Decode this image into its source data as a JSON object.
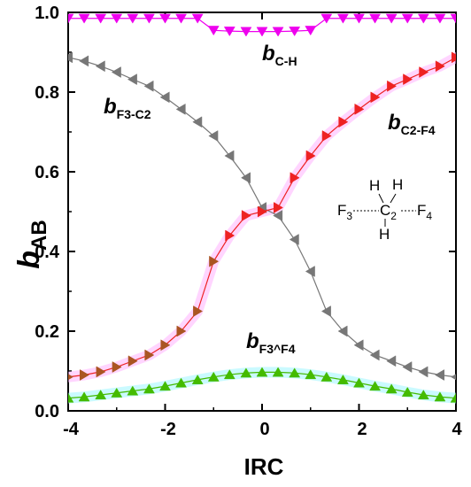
{
  "chart_data": {
    "type": "line",
    "xlabel": "IRC",
    "ylabel": {
      "main": "b",
      "sub": "AB"
    },
    "xlim": [
      -4,
      4
    ],
    "ylim": [
      0,
      1.0
    ],
    "x_ticks": [
      "-4",
      "-2",
      "0",
      "2",
      "4"
    ],
    "y_ticks": [
      "0.0",
      "0.2",
      "0.4",
      "0.6",
      "0.8",
      "1.0"
    ],
    "x": [
      -4.0,
      -3.67,
      -3.33,
      -3.0,
      -2.67,
      -2.33,
      -2.0,
      -1.67,
      -1.33,
      -1.0,
      -0.67,
      -0.33,
      0.0,
      0.33,
      0.67,
      1.0,
      1.33,
      1.67,
      2.0,
      2.33,
      2.67,
      3.0,
      3.33,
      3.67,
      4.0
    ],
    "series": [
      {
        "name": {
          "main": "b",
          "sub": "C-H"
        },
        "color": "#ee00ee",
        "marker": "triangle-down",
        "values": [
          0.985,
          0.985,
          0.985,
          0.985,
          0.985,
          0.985,
          0.985,
          0.985,
          0.985,
          0.955,
          0.953,
          0.952,
          0.952,
          0.952,
          0.953,
          0.955,
          0.985,
          0.985,
          0.985,
          0.985,
          0.985,
          0.985,
          0.985,
          0.985,
          0.985
        ]
      },
      {
        "name": {
          "main": "b",
          "sub": "F3-C2"
        },
        "color": "#777777",
        "marker": "triangle-left",
        "values": [
          0.887,
          0.878,
          0.865,
          0.85,
          0.832,
          0.815,
          0.787,
          0.757,
          0.725,
          0.69,
          0.64,
          0.585,
          0.51,
          0.49,
          0.43,
          0.35,
          0.25,
          0.2,
          0.165,
          0.14,
          0.125,
          0.11,
          0.098,
          0.09,
          0.085
        ]
      },
      {
        "name": {
          "main": "b",
          "sub": "C2-F4"
        },
        "color": "#ee2222",
        "marker": "triangle-right",
        "values": [
          0.085,
          0.09,
          0.098,
          0.11,
          0.125,
          0.14,
          0.165,
          0.2,
          0.25,
          0.375,
          0.44,
          0.49,
          0.5,
          0.51,
          0.585,
          0.64,
          0.69,
          0.725,
          0.757,
          0.787,
          0.815,
          0.832,
          0.85,
          0.865,
          0.887
        ]
      },
      {
        "name": {
          "main": "b",
          "sub": "F3^F4"
        },
        "color": "#44bb00",
        "marker": "triangle-up",
        "values": [
          0.032,
          0.035,
          0.04,
          0.045,
          0.05,
          0.055,
          0.062,
          0.07,
          0.078,
          0.085,
          0.091,
          0.095,
          0.097,
          0.097,
          0.095,
          0.091,
          0.085,
          0.078,
          0.07,
          0.062,
          0.055,
          0.047,
          0.04,
          0.035,
          0.032
        ]
      }
    ],
    "molecule": {
      "atoms": [
        {
          "label": "F",
          "sub": "3"
        },
        {
          "label": "C",
          "sub": "2"
        },
        {
          "label": "F",
          "sub": "4"
        },
        {
          "label": "H",
          "sub": ""
        },
        {
          "label": "H",
          "sub": ""
        },
        {
          "label": "H",
          "sub": ""
        }
      ]
    }
  }
}
